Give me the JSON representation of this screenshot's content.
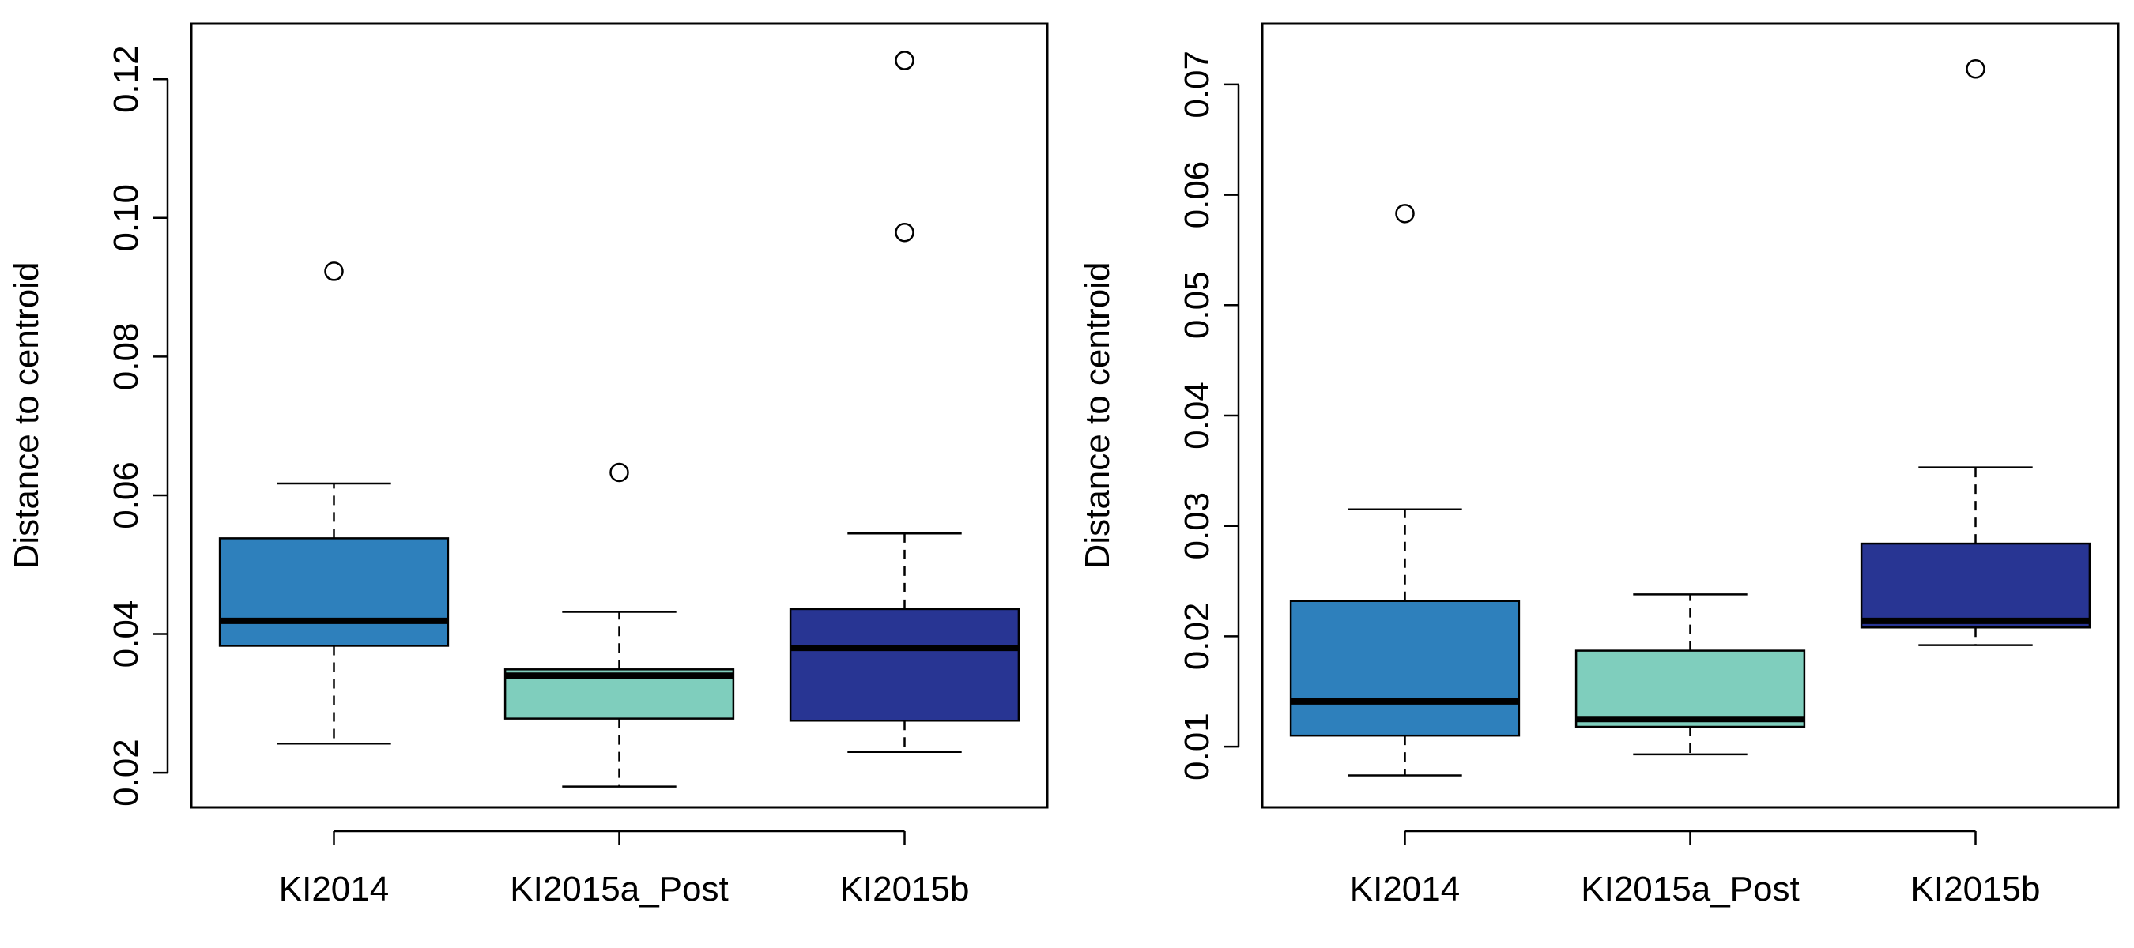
{
  "chart_data": [
    {
      "type": "box",
      "ylabel": "Distance to centroid",
      "ylim": [
        0.015,
        0.128
      ],
      "yticks": [
        0.02,
        0.04,
        0.06,
        0.08,
        0.1,
        0.12
      ],
      "ytick_labels": [
        "0.02",
        "0.04",
        "0.06",
        "0.08",
        "0.10",
        "0.12"
      ],
      "categories": [
        "KI2014",
        "KI2015a_Post",
        "KI2015b"
      ],
      "grid": false,
      "boxes": [
        {
          "category": "KI2014",
          "color": "#2e80bc",
          "whisker_low": 0.0242,
          "q1": 0.0383,
          "median": 0.0419,
          "q3": 0.0538,
          "whisker_high": 0.0617,
          "outliers": [
            0.0923
          ]
        },
        {
          "category": "KI2015a_Post",
          "color": "#7fcebd",
          "whisker_low": 0.018,
          "q1": 0.0278,
          "median": 0.034,
          "q3": 0.0349,
          "whisker_high": 0.0432,
          "outliers": [
            0.0633
          ]
        },
        {
          "category": "KI2015b",
          "color": "#283593",
          "whisker_low": 0.023,
          "q1": 0.0275,
          "median": 0.038,
          "q3": 0.0436,
          "whisker_high": 0.0545,
          "outliers": [
            0.0979,
            0.1227
          ]
        }
      ]
    },
    {
      "type": "box",
      "ylabel": "Distance to centroid",
      "ylim": [
        0.0045,
        0.0755
      ],
      "yticks": [
        0.01,
        0.02,
        0.03,
        0.04,
        0.05,
        0.06,
        0.07
      ],
      "ytick_labels": [
        "0.01",
        "0.02",
        "0.03",
        "0.04",
        "0.05",
        "0.06",
        "0.07"
      ],
      "categories": [
        "KI2014",
        "KI2015a_Post",
        "KI2015b"
      ],
      "grid": false,
      "boxes": [
        {
          "category": "KI2014",
          "color": "#2e80bc",
          "whisker_low": 0.0074,
          "q1": 0.011,
          "median": 0.0141,
          "q3": 0.0232,
          "whisker_high": 0.0315,
          "outliers": [
            0.0583
          ]
        },
        {
          "category": "KI2015a_Post",
          "color": "#7fcebd",
          "whisker_low": 0.0093,
          "q1": 0.0118,
          "median": 0.0125,
          "q3": 0.0187,
          "whisker_high": 0.0238,
          "outliers": []
        },
        {
          "category": "KI2015b",
          "color": "#283593",
          "whisker_low": 0.0192,
          "q1": 0.0208,
          "median": 0.0214,
          "q3": 0.0284,
          "whisker_high": 0.0353,
          "outliers": [
            0.0714
          ]
        }
      ]
    }
  ]
}
